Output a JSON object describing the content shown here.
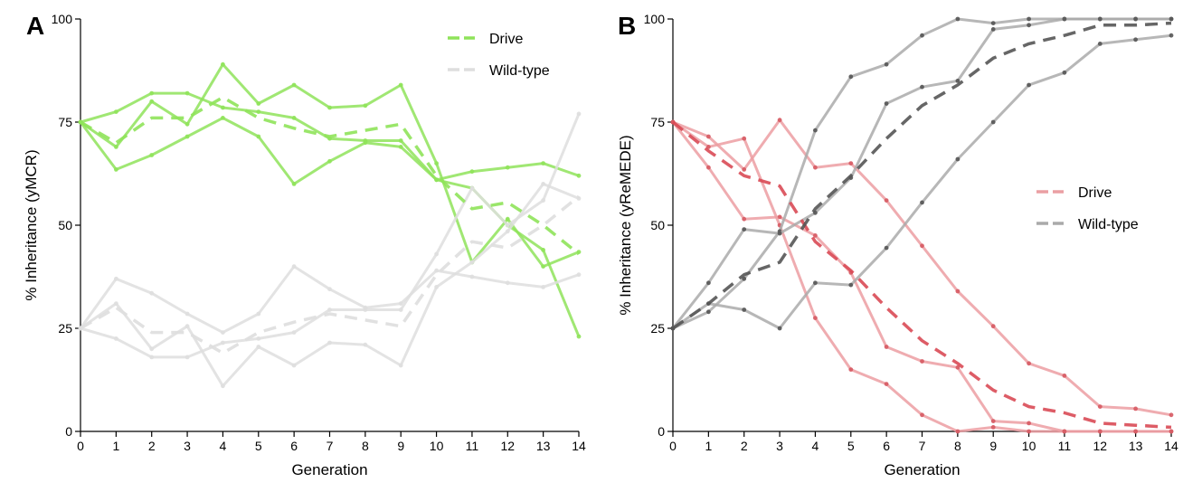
{
  "chart_data": [
    {
      "type": "line",
      "panel_label": "A",
      "xlabel": "Generation",
      "ylabel": "% Inheritance (yMCR)",
      "xlim": [
        0,
        14
      ],
      "ylim": [
        0,
        100
      ],
      "x_ticks": [
        0,
        1,
        2,
        3,
        4,
        5,
        6,
        7,
        8,
        9,
        10,
        11,
        12,
        13,
        14
      ],
      "y_ticks": [
        0,
        25,
        50,
        75,
        100
      ],
      "legend_position": "top-right",
      "legend": [
        {
          "label": "Drive",
          "color": "#8fe35a",
          "dashed": true
        },
        {
          "label": "Wild-type",
          "color": "#dedede",
          "dashed": true
        }
      ],
      "show_markers": true,
      "series": [
        {
          "group": "drive",
          "style": "solid",
          "color": "#8fe35a",
          "values": [
            75,
            77.5,
            82,
            82,
            78.5,
            77.5,
            76,
            71,
            70.5,
            70.5,
            61,
            59,
            50,
            44,
            23
          ]
        },
        {
          "group": "drive",
          "style": "solid",
          "color": "#8fe35a",
          "values": [
            75,
            69,
            80,
            74.5,
            89,
            79.5,
            84,
            78.5,
            79,
            84,
            65,
            41,
            51.5,
            40,
            43.5
          ]
        },
        {
          "group": "drive",
          "style": "solid",
          "color": "#8fe35a",
          "values": [
            75,
            63.5,
            67,
            71.5,
            76,
            71.5,
            60,
            65.5,
            70,
            69,
            61,
            63,
            64,
            65,
            62
          ]
        },
        {
          "group": "drive",
          "style": "dashed",
          "color": "#8fe35a",
          "values": [
            75,
            70,
            76,
            76,
            81,
            76,
            73.5,
            71.5,
            73,
            74.5,
            62,
            54,
            55.5,
            50,
            43
          ]
        },
        {
          "group": "wildtype",
          "style": "solid",
          "color": "#dedede",
          "values": [
            25,
            37,
            33.5,
            28.5,
            24,
            28.5,
            40,
            34.5,
            30,
            31,
            39,
            37.5,
            36,
            35,
            38
          ]
        },
        {
          "group": "wildtype",
          "style": "solid",
          "color": "#dedede",
          "values": [
            25,
            31,
            20,
            25.5,
            11,
            20.5,
            16,
            21.5,
            21,
            16,
            35,
            41,
            48.5,
            60,
            56.5
          ]
        },
        {
          "group": "wildtype",
          "style": "solid",
          "color": "#dedede",
          "values": [
            25,
            22.5,
            18,
            18,
            21.5,
            22.5,
            24,
            29.5,
            29.5,
            29.5,
            43,
            59,
            50,
            56,
            77
          ]
        },
        {
          "group": "wildtype",
          "style": "dashed",
          "color": "#dedede",
          "values": [
            25,
            30,
            24,
            24,
            19,
            24,
            26.5,
            28.5,
            27,
            25.5,
            38,
            46,
            44.5,
            50,
            57
          ]
        }
      ]
    },
    {
      "type": "line",
      "panel_label": "B",
      "xlabel": "Generation",
      "ylabel": "% Inheritance (yReMEDE)",
      "xlim": [
        0,
        14
      ],
      "ylim": [
        0,
        100
      ],
      "x_ticks": [
        0,
        1,
        2,
        3,
        4,
        5,
        6,
        7,
        8,
        9,
        10,
        11,
        12,
        13,
        14
      ],
      "y_ticks": [
        0,
        25,
        50,
        75,
        100
      ],
      "legend_position": "center-right",
      "legend": [
        {
          "label": "Drive",
          "color": "#ea9fa3",
          "dashed": true
        },
        {
          "label": "Wild-type",
          "color": "#aaaaaa",
          "dashed": true
        }
      ],
      "show_markers": true,
      "series": [
        {
          "group": "drive",
          "style": "solid",
          "color": "#ec9ea2",
          "values": [
            75,
            71.5,
            63.5,
            75.5,
            64,
            65,
            56,
            45,
            34,
            25.5,
            16.5,
            13.5,
            6,
            5.5,
            4
          ]
        },
        {
          "group": "drive",
          "style": "solid",
          "color": "#ec9ea2",
          "values": [
            75,
            64,
            51.5,
            52,
            47.5,
            38.5,
            20.5,
            17,
            15.5,
            2.5,
            2,
            0,
            0,
            0,
            0
          ]
        },
        {
          "group": "drive",
          "style": "solid",
          "color": "#ec9ea2",
          "values": [
            75,
            69,
            71,
            50,
            27.5,
            15,
            11.5,
            4,
            0,
            1,
            0,
            0,
            0,
            0,
            0
          ]
        },
        {
          "group": "drive",
          "style": "dashed",
          "color": "#d94a55",
          "values": [
            75,
            68,
            62,
            59.5,
            46,
            39,
            30,
            22,
            16.5,
            10,
            6,
            4.5,
            2,
            1.5,
            1
          ]
        },
        {
          "group": "wildtype",
          "style": "solid",
          "color": "#aaaaaa",
          "values": [
            25,
            29,
            37,
            48.5,
            73,
            86,
            89,
            96,
            100,
            99,
            100,
            100,
            100,
            100,
            100
          ]
        },
        {
          "group": "wildtype",
          "style": "solid",
          "color": "#aaaaaa",
          "values": [
            25,
            31,
            29.5,
            25,
            36,
            35.5,
            44.5,
            55.5,
            66,
            75,
            84,
            87,
            94,
            95,
            96
          ]
        },
        {
          "group": "wildtype",
          "style": "solid",
          "color": "#aaaaaa",
          "values": [
            25,
            36,
            49,
            48,
            53,
            61.5,
            79.5,
            83.5,
            85,
            97.5,
            98.5,
            100,
            100,
            100,
            100
          ]
        },
        {
          "group": "wildtype",
          "style": "dashed",
          "color": "#555555",
          "values": [
            25,
            31,
            38,
            41,
            54,
            62,
            71,
            79,
            84,
            90.5,
            94,
            96,
            98.5,
            98.5,
            99
          ]
        }
      ]
    }
  ]
}
